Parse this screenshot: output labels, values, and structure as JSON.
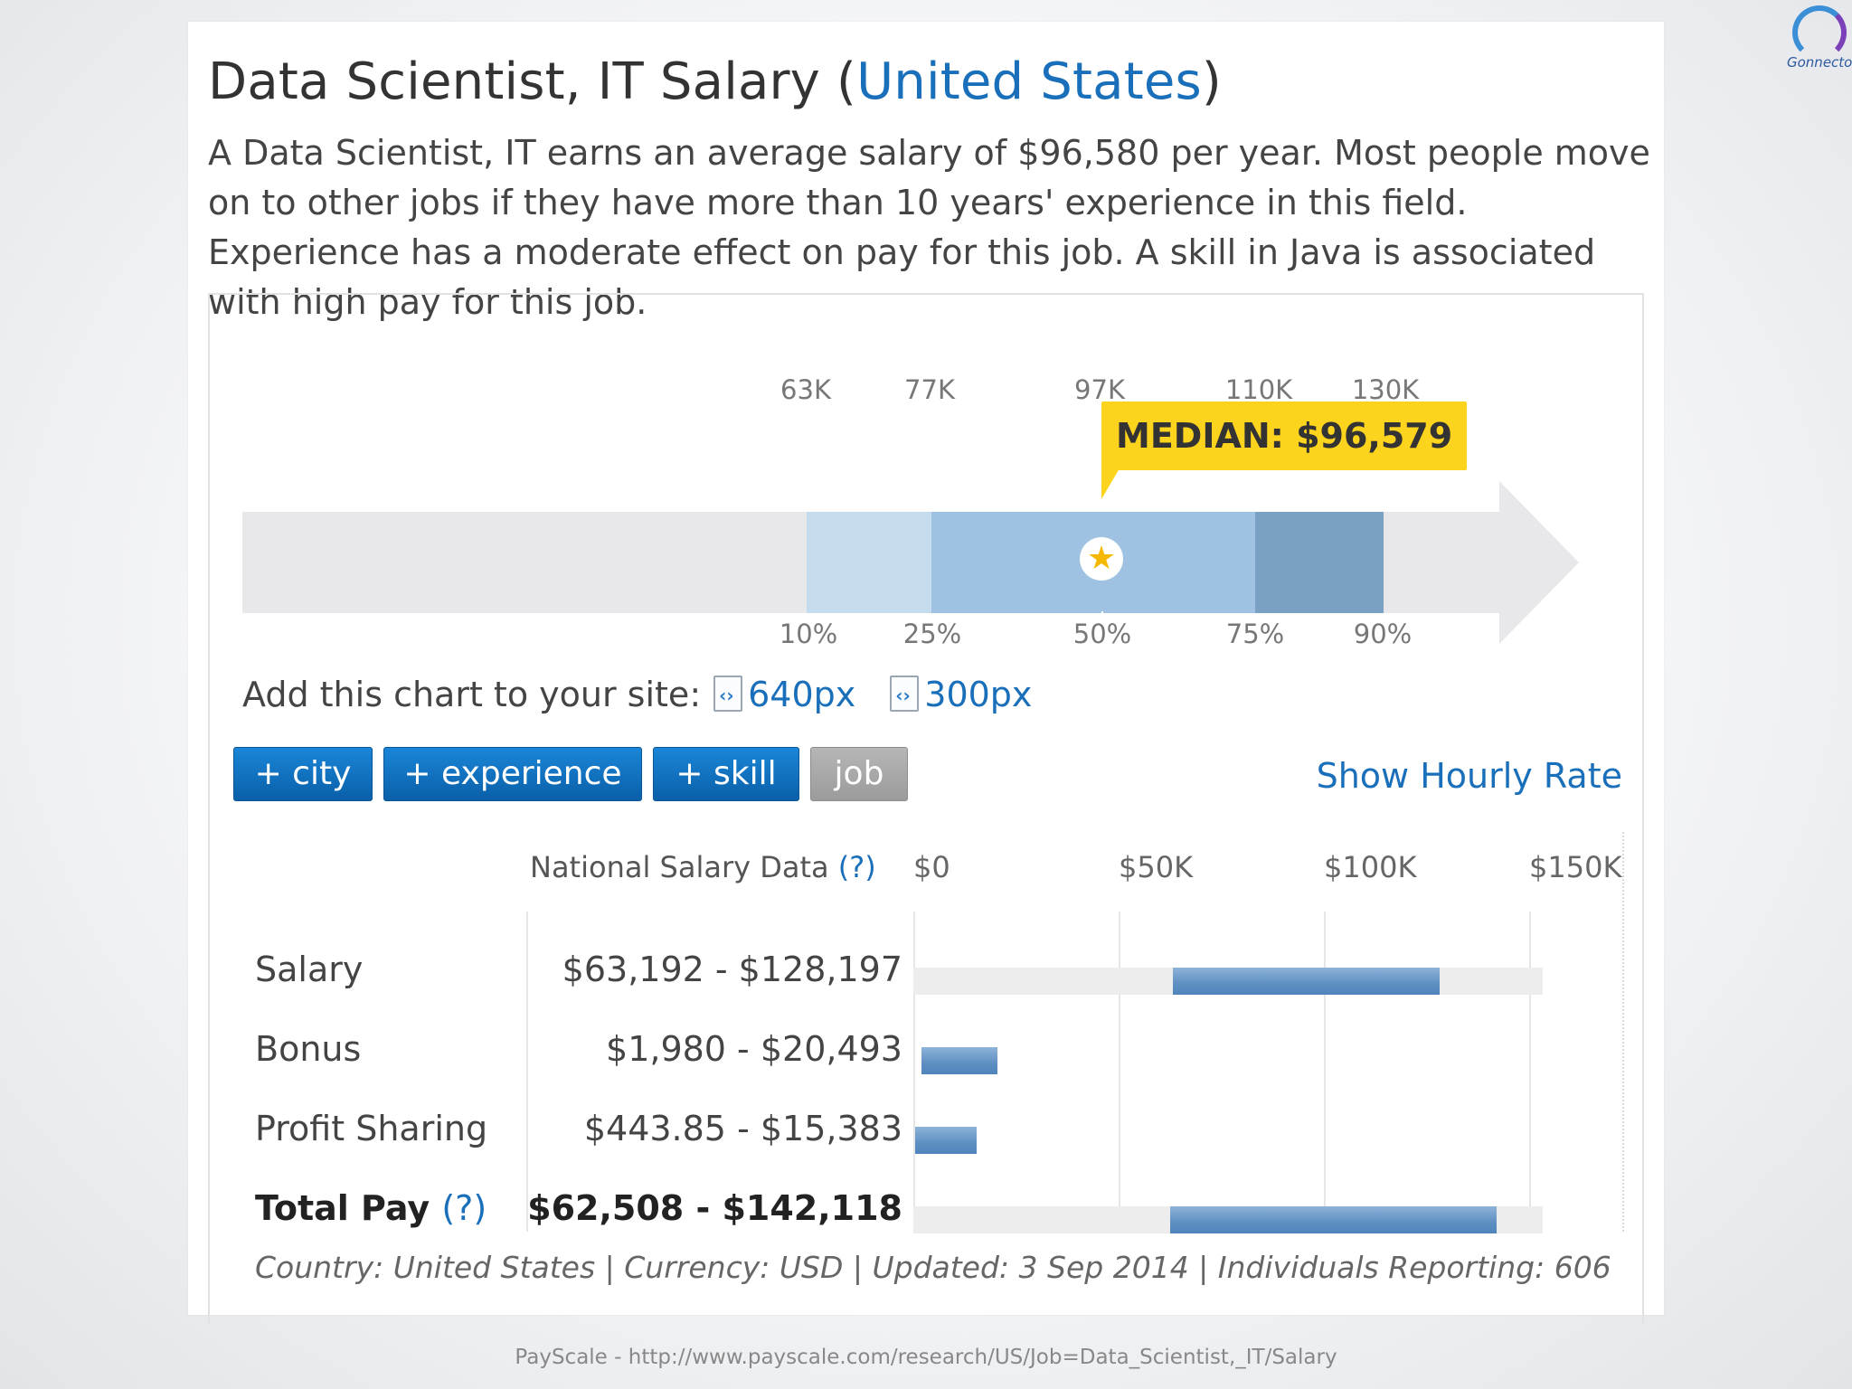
{
  "header": {
    "title_prefix": "Data Scientist, IT Salary (",
    "title_link": "United States",
    "title_suffix": ")",
    "description": "A Data Scientist, IT earns an average salary of $96,580 per year. Most people move on to other jobs if they have more than 10 years' experience in this field. Experience has a moderate effect on pay for this job. A skill in Java is associated with high pay for this job."
  },
  "percentile_chart": {
    "top_labels": [
      "63K",
      "77K",
      "97K",
      "110K",
      "130K"
    ],
    "bottom_labels": [
      "10%",
      "25%",
      "50%",
      "75%",
      "90%"
    ],
    "median_label": "MEDIAN: $96,579",
    "median_icon": "star-icon",
    "colors": {
      "p10_25": "#c5dcef",
      "p25_75": "#9fc2e2",
      "p75_90": "#7aa0c4",
      "track": "#e8e8ea",
      "tooltip": "#fcd31d"
    }
  },
  "embed": {
    "label": "Add this chart to your site:",
    "link_640": "640px",
    "link_300": "300px",
    "icon": "embed-code-icon"
  },
  "filters": {
    "city": "+ city",
    "experience": "+ experience",
    "skill": "+ skill",
    "job": "job",
    "hourly": "Show Hourly Rate"
  },
  "table": {
    "header": "National Salary Data",
    "help": "(?)",
    "axis_ticks": [
      "$0",
      "$50K",
      "$100K",
      "$150K"
    ],
    "rows": [
      {
        "label": "Salary",
        "range": "$63,192 - $128,197",
        "low": 63192,
        "high": 128197,
        "track": true
      },
      {
        "label": "Bonus",
        "range": "$1,980 - $20,493",
        "low": 1980,
        "high": 20493,
        "track": false
      },
      {
        "label": "Profit Sharing",
        "range": "$443.85 - $15,383",
        "low": 443.85,
        "high": 15383,
        "track": false
      },
      {
        "label": "Total Pay",
        "help": "(?)",
        "range": "$62,508 - $142,118",
        "low": 62508,
        "high": 142118,
        "track": true
      }
    ],
    "footnote": "Country: United States | Currency: USD | Updated: 3 Sep 2014 | Individuals Reporting: 606"
  },
  "caption": "PayScale - http://www.payscale.com/research/US/Job=Data_Scientist,_IT/Salary",
  "logo_text": "Gonnector"
}
